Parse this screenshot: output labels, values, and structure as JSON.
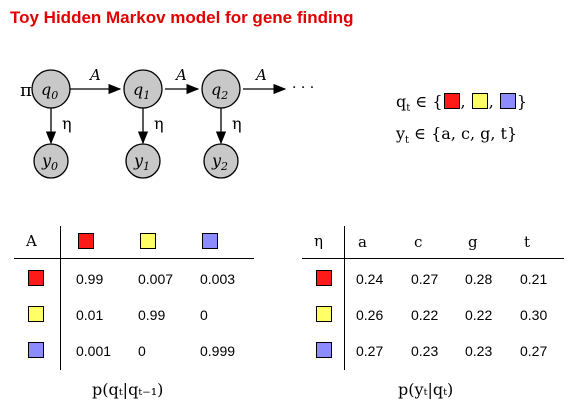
{
  "title": "Toy Hidden Markov model for gene finding",
  "colors": {
    "red": "#ff1a1a",
    "yellow": "#ffff66",
    "blue": "#8c8cff",
    "node": "#c8c8c8"
  },
  "diagram": {
    "pi_label": "π",
    "transition_label": "A",
    "emission_label": "η",
    "ellipsis": "· · ·",
    "hidden_nodes": [
      {
        "sym": "q",
        "sub": "0"
      },
      {
        "sym": "q",
        "sub": "1"
      },
      {
        "sym": "q",
        "sub": "2"
      }
    ],
    "observed_nodes": [
      {
        "sym": "y",
        "sub": "0"
      },
      {
        "sym": "y",
        "sub": "1"
      },
      {
        "sym": "y",
        "sub": "2"
      }
    ]
  },
  "domains": {
    "q_lhs": "q",
    "q_sub": "t",
    "elem": "∈",
    "y_lhs": "y",
    "y_sub": "t",
    "y_set": "{a, c, g, t}",
    "q_open": "{",
    "q_close": "}",
    "comma": ","
  },
  "transition_table": {
    "corner": "A",
    "rows": [
      {
        "color": "red",
        "values": [
          "0.99",
          "0.007",
          "0.003"
        ]
      },
      {
        "color": "yellow",
        "values": [
          "0.01",
          "0.99",
          "0"
        ]
      },
      {
        "color": "blue",
        "values": [
          "0.001",
          "0",
          "0.999"
        ]
      }
    ],
    "caption": "p(qₜ|qₜ₋₁)"
  },
  "emission_table": {
    "corner": "η",
    "columns": [
      "a",
      "c",
      "g",
      "t"
    ],
    "rows": [
      {
        "color": "red",
        "values": [
          "0.24",
          "0.27",
          "0.28",
          "0.21"
        ]
      },
      {
        "color": "yellow",
        "values": [
          "0.26",
          "0.22",
          "0.22",
          "0.30"
        ]
      },
      {
        "color": "blue",
        "values": [
          "0.27",
          "0.23",
          "0.23",
          "0.27"
        ]
      }
    ],
    "caption": "p(yₜ|qₜ)"
  }
}
